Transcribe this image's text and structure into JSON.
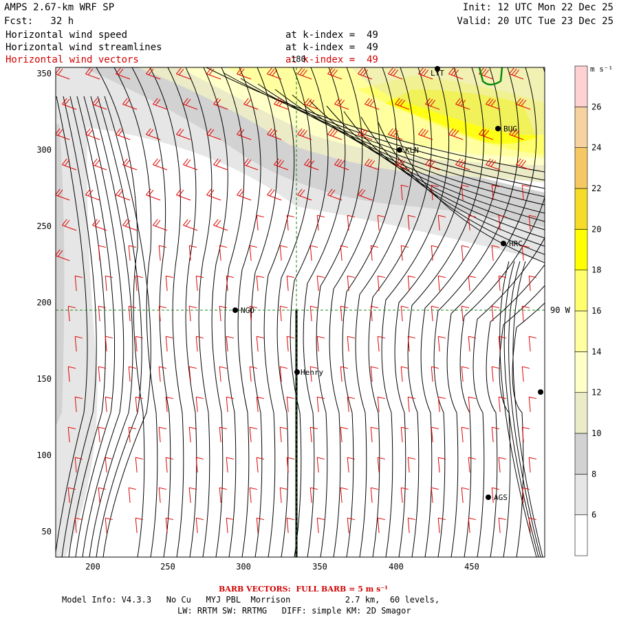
{
  "header": {
    "model": "AMPS 2.67-km WRF SP",
    "forecast": "Fcst:   32 h",
    "init": "Init: 12 UTC Mon 22 Dec 25",
    "valid": "Valid: 20 UTC Tue 23 Dec 25",
    "field_lines": [
      {
        "name": "Horizontal wind speed",
        "level": "at k-index =  49"
      },
      {
        "name": "Horizontal wind streamlines",
        "level": "at k-index =  49"
      },
      {
        "name": "Horizontal wind vectors",
        "level": "at k-index =  49"
      }
    ]
  },
  "map": {
    "x_ticks": [
      "200",
      "250",
      "300",
      "350",
      "400",
      "450"
    ],
    "y_ticks": [
      "350",
      "300",
      "250",
      "200",
      "150",
      "100",
      "50"
    ],
    "meridian_label": "180",
    "parallel_label": "90 W",
    "stations": [
      {
        "name": "NGO"
      },
      {
        "name": "Henry"
      },
      {
        "name": "KLN"
      },
      {
        "name": "BUG"
      },
      {
        "name": "HRC"
      },
      {
        "name": "AGS"
      },
      {
        "name": "LYT"
      }
    ]
  },
  "colorbar": {
    "unit": "m s⁻¹",
    "labels": [
      "26",
      "24",
      "22",
      "20",
      "18",
      "16",
      "14",
      "12",
      "10",
      "8",
      "6"
    ],
    "colors": [
      "#ffffff",
      "#e6e6e6",
      "#d2d2d2",
      "#ebebc8",
      "#ffffc8",
      "#ffffa0",
      "#ffff6e",
      "#ffff00",
      "#f5dc28",
      "#f5c864",
      "#f5d2a0",
      "#ffd2d2"
    ]
  },
  "footer": {
    "barb_note": "BARB VECTORS:  FULL BARB = 5 m s⁻¹",
    "model_info": "Model Info: V4.3.3   No Cu   MYJ PBL  Morrison           2.7 km,  60 levels,",
    "physics": "LW: RRTM SW: RRTMG   DIFF: simple KM: 2D Smagor"
  }
}
